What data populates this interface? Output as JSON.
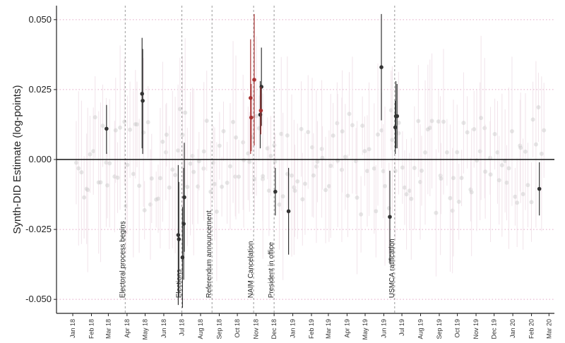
{
  "chart_data": {
    "type": "scatter",
    "ylabel": "Synth-DID Estimate (log-points)",
    "xlabel": "",
    "ylim": [
      -0.055,
      0.055
    ],
    "y_ticks": [
      -0.05,
      -0.025,
      0.0,
      0.025,
      0.05
    ],
    "y_tick_labels": [
      "-0.050",
      "-0.025",
      "0.000",
      "0.025",
      "0.050"
    ],
    "x_range": [
      "2017-12-05",
      "2020-03-10"
    ],
    "x_ticks": [
      {
        "date": "2018-01-01",
        "label": "Jan 18"
      },
      {
        "date": "2018-02-01",
        "label": "Feb 18"
      },
      {
        "date": "2018-03-01",
        "label": "Mar 18"
      },
      {
        "date": "2018-04-01",
        "label": "Apr 18"
      },
      {
        "date": "2018-05-01",
        "label": "May 18"
      },
      {
        "date": "2018-06-01",
        "label": "Jun 18"
      },
      {
        "date": "2018-07-01",
        "label": "Jul 18"
      },
      {
        "date": "2018-08-01",
        "label": "Aug 18"
      },
      {
        "date": "2018-09-01",
        "label": "Sep 18"
      },
      {
        "date": "2018-10-01",
        "label": "Oct 18"
      },
      {
        "date": "2018-11-01",
        "label": "Nov 18"
      },
      {
        "date": "2018-12-01",
        "label": "Dec 18"
      },
      {
        "date": "2019-01-01",
        "label": "Jan 19"
      },
      {
        "date": "2019-02-01",
        "label": "Feb 19"
      },
      {
        "date": "2019-03-01",
        "label": "Mar 19"
      },
      {
        "date": "2019-04-01",
        "label": "Apr 19"
      },
      {
        "date": "2019-05-01",
        "label": "May 19"
      },
      {
        "date": "2019-06-01",
        "label": "Jun 19"
      },
      {
        "date": "2019-07-01",
        "label": "Jul 19"
      },
      {
        "date": "2019-08-01",
        "label": "Aug 19"
      },
      {
        "date": "2019-09-01",
        "label": "Sep 19"
      },
      {
        "date": "2019-10-01",
        "label": "Oct 19"
      },
      {
        "date": "2019-11-01",
        "label": "Nov 19"
      },
      {
        "date": "2019-12-01",
        "label": "Dec 19"
      },
      {
        "date": "2020-01-01",
        "label": "Jan 20"
      },
      {
        "date": "2020-02-01",
        "label": "Feb 20"
      },
      {
        "date": "2020-03-01",
        "label": "Mar 20"
      }
    ],
    "grid": true,
    "zero_line": true,
    "events": [
      {
        "date": "2018-03-29",
        "label": "Electoral process begins"
      },
      {
        "date": "2018-07-01",
        "label": "Elections"
      },
      {
        "date": "2018-08-20",
        "label": "Referendum announcement"
      },
      {
        "date": "2018-10-28",
        "label": "NAIM Cancelation"
      },
      {
        "date": "2018-12-01",
        "label": "President in office"
      },
      {
        "date": "2019-06-19",
        "label": "USMCA ratification"
      }
    ],
    "series": [
      {
        "color": "#333333",
        "points": [
          {
            "x": "2018-02-26",
            "y": 0.011,
            "lo": 0.002,
            "hi": 0.0195
          },
          {
            "x": "2018-04-26",
            "y": 0.0235,
            "lo": 0.004,
            "hi": 0.0435
          },
          {
            "x": "2018-04-27",
            "y": 0.021,
            "lo": 0.002,
            "hi": 0.0395
          },
          {
            "x": "2018-06-25",
            "y": -0.027,
            "lo": -0.052,
            "hi": -0.002
          },
          {
            "x": "2018-06-26",
            "y": -0.0285,
            "lo": -0.049,
            "hi": -0.008
          },
          {
            "x": "2018-07-02",
            "y": -0.035,
            "lo": -0.053,
            "hi": -0.017
          },
          {
            "x": "2018-07-04",
            "y": -0.023,
            "lo": -0.043,
            "hi": -0.003
          },
          {
            "x": "2018-07-05",
            "y": -0.0135,
            "lo": -0.033,
            "hi": 0.006
          },
          {
            "x": "2018-11-08",
            "y": 0.016,
            "lo": 0.004,
            "hi": 0.028
          },
          {
            "x": "2018-11-10",
            "y": 0.026,
            "lo": 0.012,
            "hi": 0.04
          },
          {
            "x": "2018-12-03",
            "y": -0.0115,
            "lo": -0.02,
            "hi": -0.003
          },
          {
            "x": "2018-12-25",
            "y": -0.0185,
            "lo": -0.034,
            "hi": -0.003
          },
          {
            "x": "2019-05-28",
            "y": 0.033,
            "lo": 0.014,
            "hi": 0.052
          },
          {
            "x": "2019-06-11",
            "y": -0.0205,
            "lo": -0.037,
            "hi": -0.004
          },
          {
            "x": "2019-06-20",
            "y": 0.0115,
            "lo": 0.002,
            "hi": 0.021
          },
          {
            "x": "2019-06-21",
            "y": 0.0155,
            "lo": 0.004,
            "hi": 0.028
          },
          {
            "x": "2019-06-23",
            "y": 0.0155,
            "lo": 0.004,
            "hi": 0.027
          },
          {
            "x": "2020-02-14",
            "y": -0.0105,
            "lo": -0.02,
            "hi": -0.001
          }
        ]
      },
      {
        "color": "#a83232",
        "points": [
          {
            "x": "2018-10-23",
            "y": 0.022,
            "lo": 0.002,
            "hi": 0.043
          },
          {
            "x": "2018-10-24",
            "y": 0.015,
            "lo": 0.003,
            "hi": 0.027
          },
          {
            "x": "2018-10-29",
            "y": 0.0285,
            "lo": 0.005,
            "hi": 0.052
          },
          {
            "x": "2018-11-09",
            "y": 0.0175,
            "lo": 0.009,
            "hi": 0.026
          }
        ]
      }
    ],
    "background": {
      "color": "#c8c8c8",
      "note_label": ""
    }
  }
}
